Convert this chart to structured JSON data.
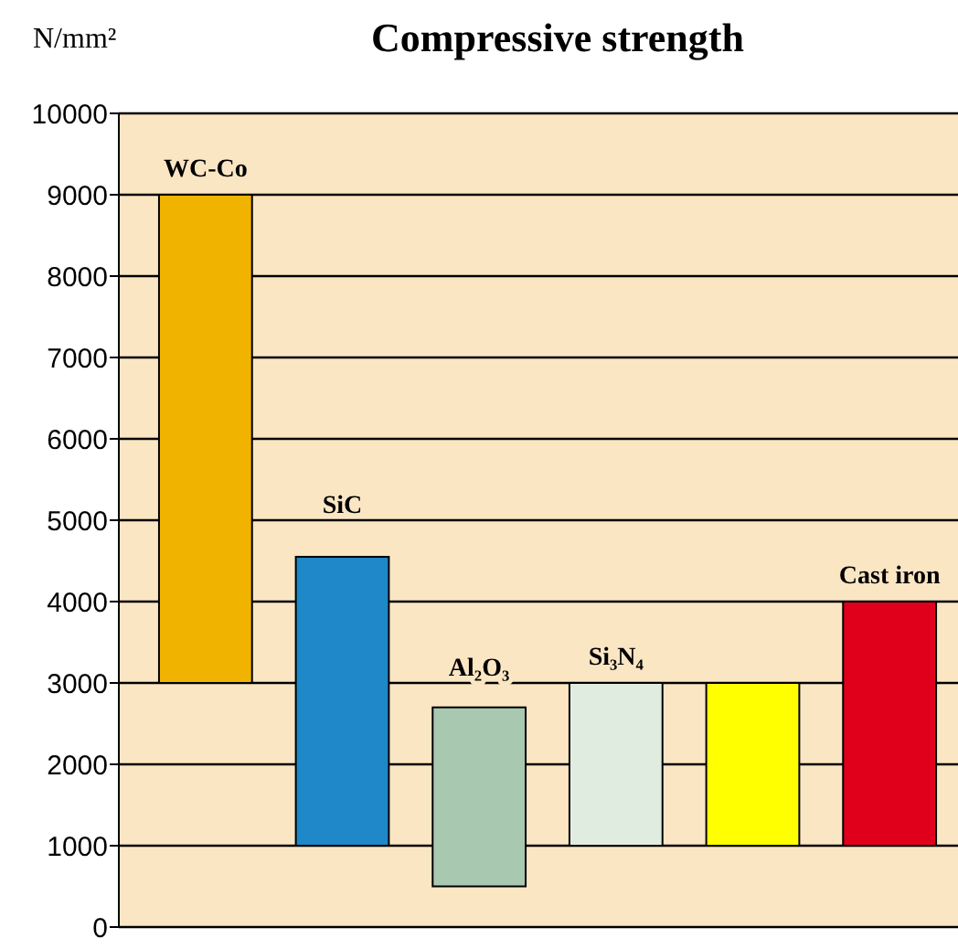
{
  "chart_data": {
    "type": "bar",
    "title": "Compressive strength",
    "ylabel": "N/mm²",
    "categories": [
      "WC-Co",
      "SiC",
      "Al₂O₃",
      "Si₃N₄",
      null,
      "Cast iron"
    ],
    "base": [
      3000,
      1000,
      500,
      1000,
      1000,
      1000
    ],
    "values": [
      6000,
      3550,
      2200,
      2000,
      2000,
      3000
    ],
    "colors": [
      "#f0b400",
      "#1e88c8",
      "#a8c8b0",
      "#e0ece0",
      "#ffff00",
      "#e0001c"
    ],
    "ylim": [
      0,
      10000
    ],
    "yticks": [
      0,
      1000,
      2000,
      3000,
      4000,
      5000,
      6000,
      7000,
      8000,
      9000,
      10000
    ],
    "grid": "y"
  }
}
